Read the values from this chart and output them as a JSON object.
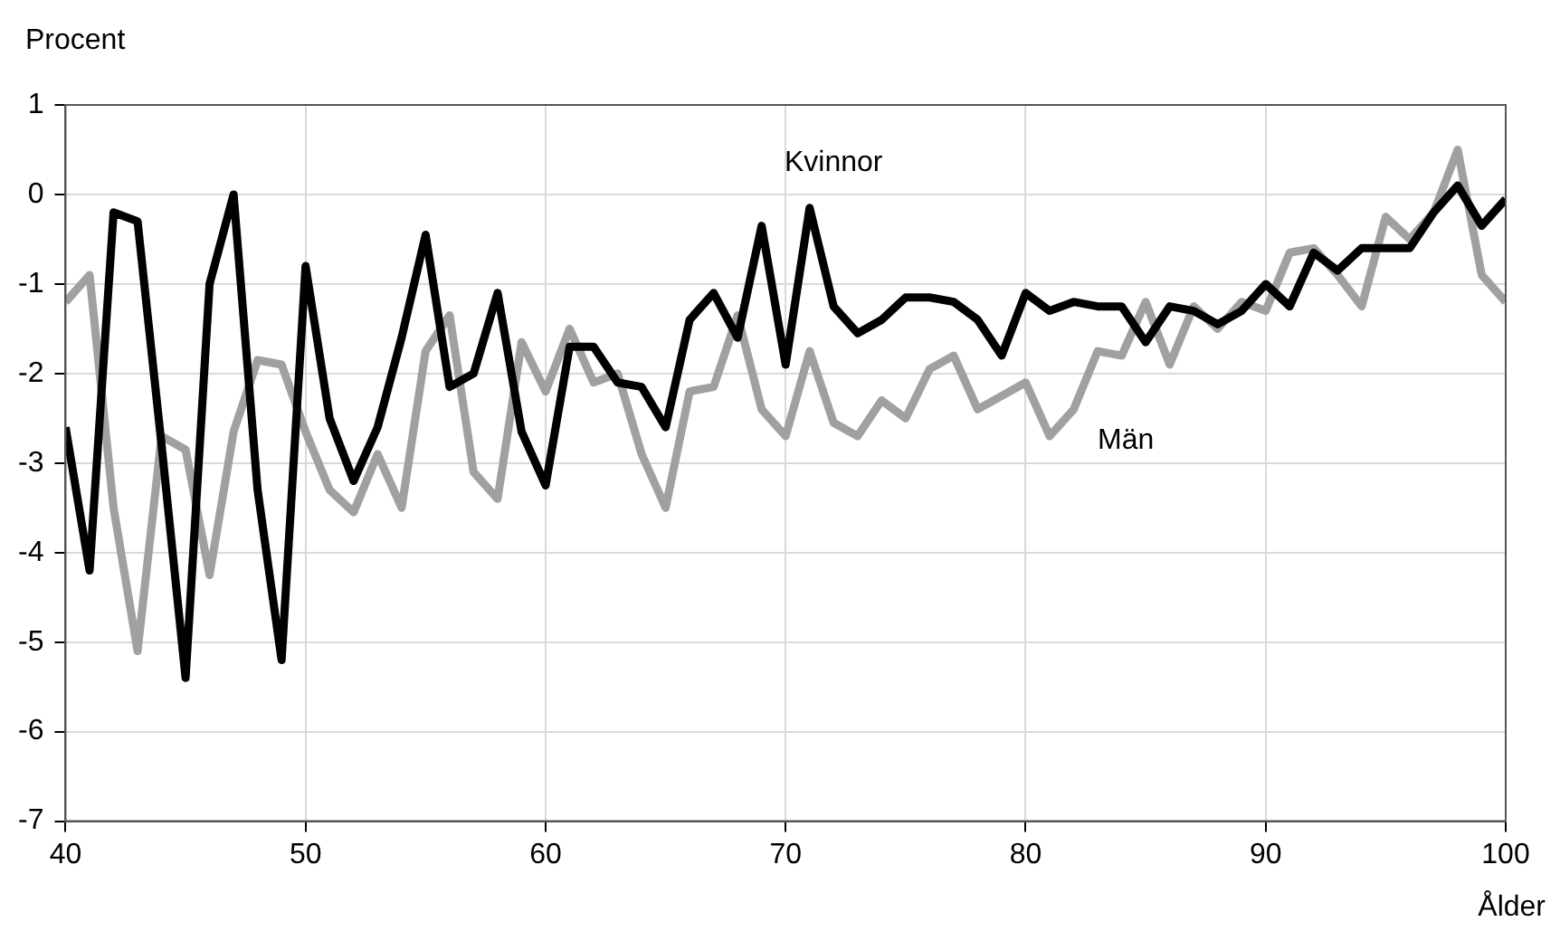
{
  "chart_data": {
    "type": "line",
    "xlabel": "Ålder",
    "ylabel": "Procent",
    "x": [
      40,
      41,
      42,
      43,
      44,
      45,
      46,
      47,
      48,
      49,
      50,
      51,
      52,
      53,
      54,
      55,
      56,
      57,
      58,
      59,
      60,
      61,
      62,
      63,
      64,
      65,
      66,
      67,
      68,
      69,
      70,
      71,
      72,
      73,
      74,
      75,
      76,
      77,
      78,
      79,
      80,
      81,
      82,
      83,
      84,
      85,
      86,
      87,
      88,
      89,
      90,
      91,
      92,
      93,
      94,
      95,
      96,
      97,
      98,
      99,
      100
    ],
    "series": [
      {
        "name": "Kvinnor",
        "color": "#000000",
        "values": [
          -2.6,
          -4.2,
          -0.2,
          -0.3,
          -2.8,
          -5.4,
          -1.0,
          0.0,
          -3.3,
          -5.2,
          -0.8,
          -2.5,
          -3.2,
          -2.6,
          -1.6,
          -0.45,
          -2.15,
          -2.0,
          -1.1,
          -2.65,
          -3.25,
          -1.7,
          -1.7,
          -2.1,
          -2.15,
          -2.6,
          -1.4,
          -1.1,
          -1.6,
          -0.35,
          -1.9,
          -0.15,
          -1.25,
          -1.55,
          -1.4,
          -1.15,
          -1.15,
          -1.2,
          -1.4,
          -1.8,
          -1.1,
          -1.3,
          -1.2,
          -1.25,
          -1.25,
          -1.65,
          -1.25,
          -1.3,
          -1.45,
          -1.3,
          -1.0,
          -1.25,
          -0.65,
          -0.85,
          -0.6,
          -0.6,
          -0.6,
          -0.2,
          0.1,
          -0.35,
          -0.05
        ]
      },
      {
        "name": "Män",
        "color": "#a0a0a0",
        "values": [
          -1.2,
          -0.9,
          -3.5,
          -5.1,
          -2.7,
          -2.85,
          -4.25,
          -2.65,
          -1.85,
          -1.9,
          -2.65,
          -3.3,
          -3.55,
          -2.9,
          -3.5,
          -1.75,
          -1.35,
          -3.1,
          -3.4,
          -1.65,
          -2.2,
          -1.5,
          -2.1,
          -2.0,
          -2.9,
          -3.5,
          -2.2,
          -2.15,
          -1.35,
          -2.4,
          -2.7,
          -1.75,
          -2.55,
          -2.7,
          -2.3,
          -2.5,
          -1.95,
          -1.8,
          -2.4,
          -2.25,
          -2.1,
          -2.7,
          -2.4,
          -1.75,
          -1.8,
          -1.2,
          -1.9,
          -1.25,
          -1.5,
          -1.2,
          -1.3,
          -0.65,
          -0.6,
          -0.9,
          -1.25,
          -0.25,
          -0.5,
          -0.2,
          0.5,
          -0.9,
          -1.2
        ]
      }
    ],
    "xlim": [
      40,
      100
    ],
    "xticks": [
      40,
      50,
      60,
      70,
      80,
      90,
      100
    ],
    "ylim": [
      -7,
      1
    ],
    "yticks": [
      -7,
      -6,
      -5,
      -4,
      -3,
      -2,
      -1,
      0,
      1
    ],
    "grid": true,
    "legend": false,
    "marker": "none",
    "line_style": "solid"
  }
}
